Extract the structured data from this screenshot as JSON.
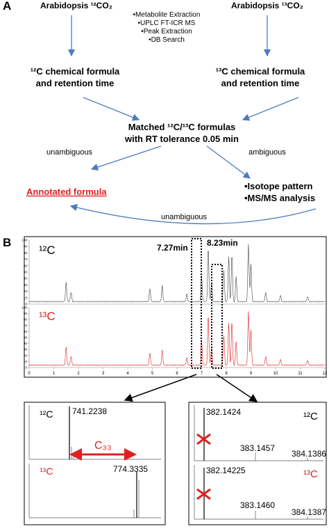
{
  "panel_a": {
    "label": "A",
    "left_source": "Arabidopsis ¹²CO₂",
    "right_source": "Arabidopsis ¹³CO₂",
    "steps": [
      "•Metabolite Extraction",
      "•UPLC FT-ICR MS",
      "•Peak Extraction",
      "•DB Search"
    ],
    "left_formula": [
      "¹²C chemical formula",
      "and retention time"
    ],
    "right_formula": [
      "¹³C chemical formula",
      "and retention time"
    ],
    "matched": [
      "Matched ¹²C/¹³C formulas",
      "with RT tolerance 0.05 min"
    ],
    "edge_left": "unambiguous",
    "edge_right": "ambiguous",
    "edge_back": "unambiguous",
    "annotated": "Annotated formula",
    "analysis": [
      "•Isotope pattern",
      "•MS/MS analysis"
    ]
  },
  "panel_b": {
    "label": "B",
    "chromatogram": {
      "label_12c": "¹²C",
      "label_13c": "¹³C",
      "rt1": "7.27min",
      "rt2": "8.23min",
      "xticks": [
        0,
        1,
        2,
        3,
        4,
        5,
        6,
        7,
        8,
        9,
        10,
        11,
        12
      ],
      "yticks": [
        0,
        10,
        20,
        30,
        40,
        50,
        60,
        70,
        80,
        90,
        100
      ]
    },
    "spectrum_left": {
      "label_12c": "¹²C",
      "label_13c": "¹³C",
      "peak_12c": "741.2238",
      "peak_13c": "774.3335",
      "carbons": "C₃₃"
    },
    "spectrum_right": {
      "label_12c": "¹²C",
      "label_13c": "¹³C",
      "top": [
        "382.1424",
        "383.1457",
        "384.1386"
      ],
      "bottom": [
        "382.14225",
        "383.1460",
        "384.1387"
      ]
    }
  }
}
